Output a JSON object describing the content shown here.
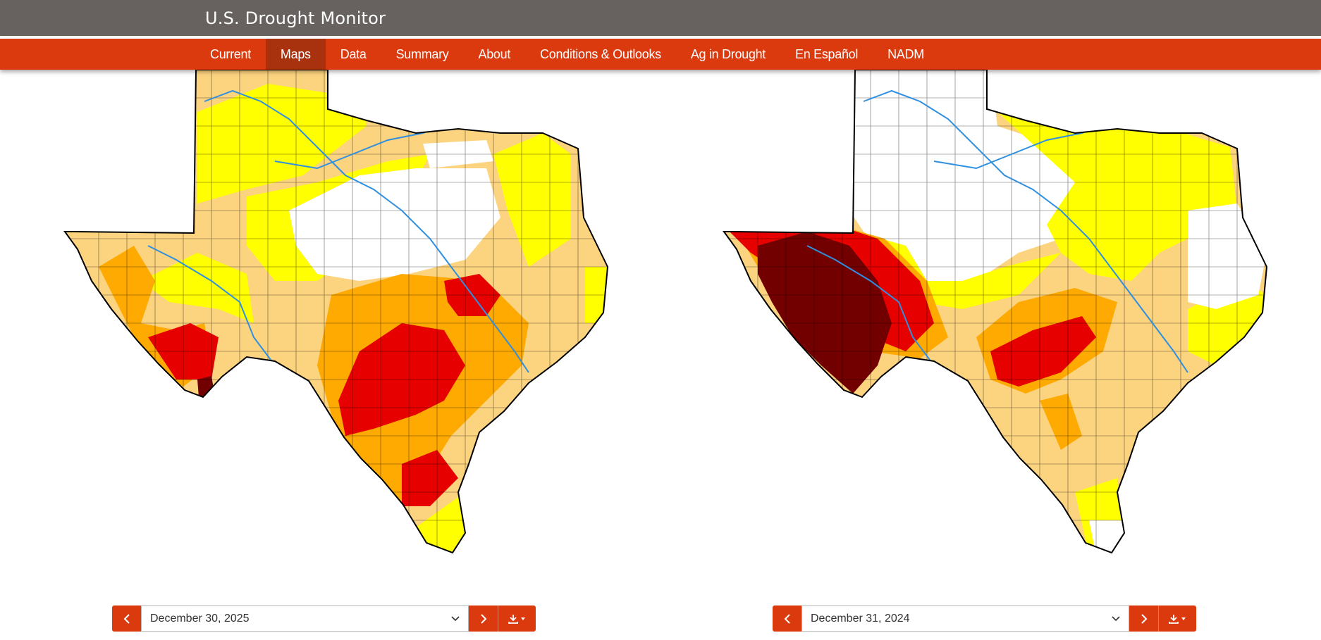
{
  "header": {
    "title": "U.S. Drought Monitor"
  },
  "nav": {
    "items": [
      {
        "label": "Current"
      },
      {
        "label": "Maps",
        "active": true
      },
      {
        "label": "Data"
      },
      {
        "label": "Summary"
      },
      {
        "label": "About"
      },
      {
        "label": "Conditions & Outlooks"
      },
      {
        "label": "Ag in Drought"
      },
      {
        "label": "En Español"
      },
      {
        "label": "NADM"
      }
    ]
  },
  "maps": {
    "left": {
      "date": "December 30, 2025",
      "prev_icon": "chevron-left-icon",
      "next_icon": "chevron-right-icon",
      "download_icon": "download-icon"
    },
    "right": {
      "date": "December 31, 2024",
      "prev_icon": "chevron-left-icon",
      "next_icon": "chevron-right-icon",
      "download_icon": "download-icon"
    }
  },
  "legend_colors": {
    "D0": "#ffff00",
    "D1": "#fcd37f",
    "D2": "#ffaa00",
    "D3": "#e60000",
    "D4": "#730000",
    "rivers": "#2f8fe0",
    "accent": "#db3a0f",
    "header_bg": "#67625f"
  }
}
